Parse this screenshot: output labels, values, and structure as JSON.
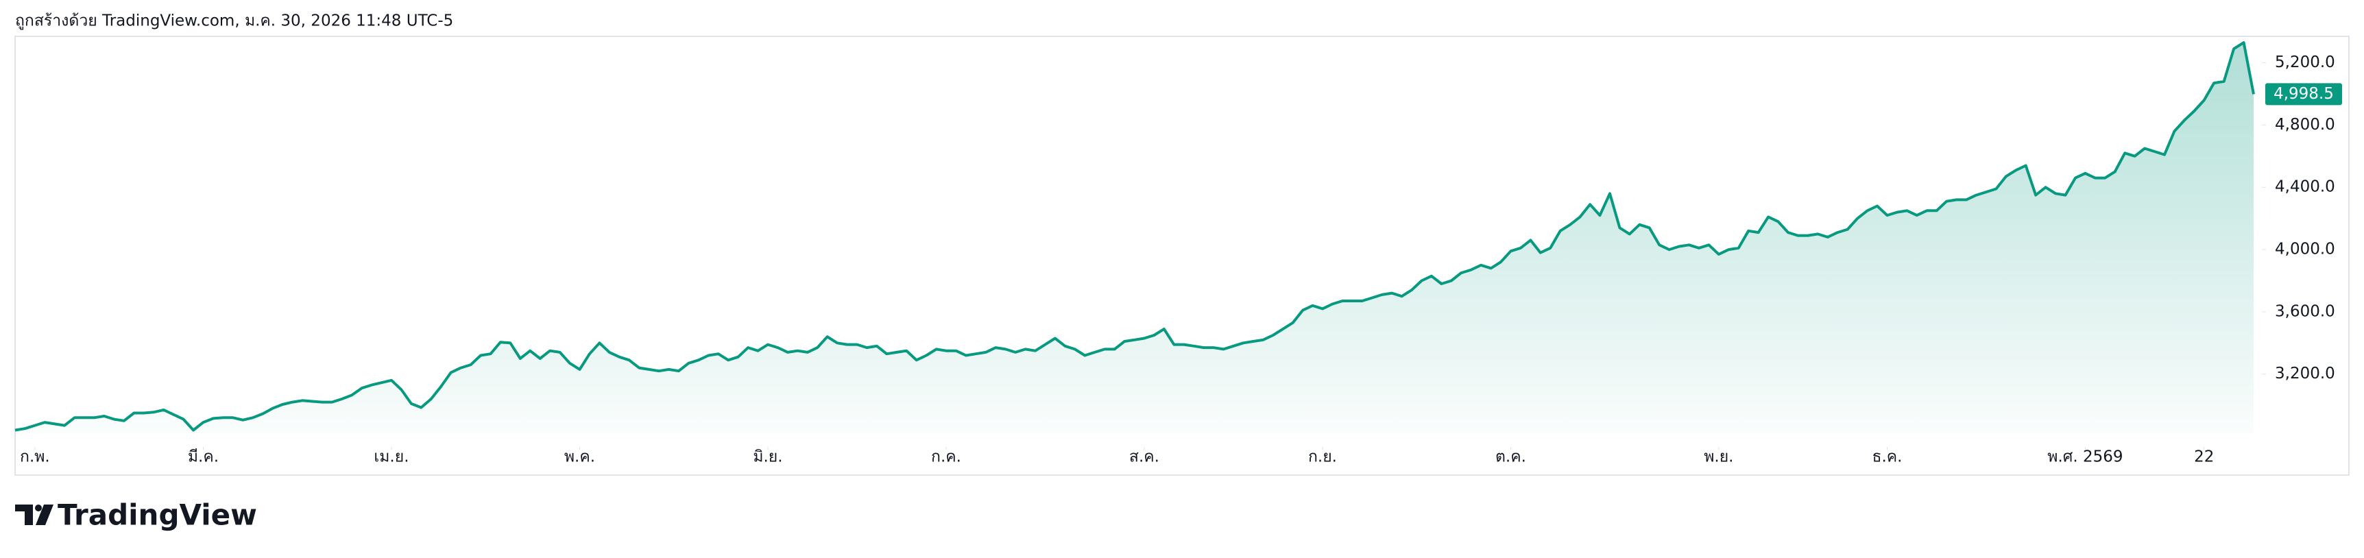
{
  "header": {
    "text": "ถูกสร้างด้วย TradingView.com, ม.ค. 30, 2026 11:48 UTC-5"
  },
  "footer": {
    "brand": "TradingView"
  },
  "chart_data": {
    "type": "area",
    "color": "#089981",
    "values": [
      2840,
      2850,
      2870,
      2890,
      2880,
      2870,
      2920,
      2920,
      2920,
      2930,
      2910,
      2900,
      2950,
      2950,
      2955,
      2970,
      2940,
      2910,
      2840,
      2890,
      2915,
      2920,
      2920,
      2905,
      2920,
      2945,
      2980,
      3005,
      3020,
      3030,
      3025,
      3020,
      3020,
      3040,
      3065,
      3110,
      3130,
      3145,
      3160,
      3100,
      3010,
      2985,
      3040,
      3120,
      3210,
      3240,
      3260,
      3320,
      3330,
      3405,
      3400,
      3300,
      3350,
      3300,
      3350,
      3340,
      3270,
      3230,
      3330,
      3400,
      3340,
      3310,
      3290,
      3240,
      3230,
      3220,
      3230,
      3220,
      3270,
      3290,
      3320,
      3330,
      3290,
      3310,
      3370,
      3350,
      3390,
      3370,
      3340,
      3350,
      3340,
      3370,
      3440,
      3400,
      3390,
      3390,
      3370,
      3380,
      3330,
      3340,
      3350,
      3290,
      3320,
      3360,
      3350,
      3350,
      3320,
      3330,
      3340,
      3370,
      3360,
      3340,
      3360,
      3350,
      3390,
      3430,
      3380,
      3360,
      3320,
      3340,
      3360,
      3360,
      3410,
      3420,
      3430,
      3450,
      3490,
      3390,
      3390,
      3380,
      3370,
      3370,
      3360,
      3380,
      3400,
      3410,
      3420,
      3450,
      3490,
      3530,
      3610,
      3640,
      3620,
      3650,
      3670,
      3670,
      3670,
      3690,
      3710,
      3720,
      3700,
      3740,
      3800,
      3830,
      3780,
      3800,
      3850,
      3870,
      3900,
      3880,
      3920,
      3990,
      4010,
      4060,
      3980,
      4010,
      4120,
      4160,
      4210,
      4290,
      4220,
      4360,
      4140,
      4100,
      4160,
      4140,
      4030,
      4000,
      4020,
      4030,
      4010,
      4030,
      3970,
      4000,
      4010,
      4120,
      4110,
      4210,
      4180,
      4110,
      4090,
      4090,
      4100,
      4080,
      4110,
      4130,
      4200,
      4250,
      4280,
      4220,
      4240,
      4250,
      4220,
      4250,
      4250,
      4310,
      4320,
      4320,
      4350,
      4370,
      4390,
      4470,
      4510,
      4540,
      4350,
      4400,
      4360,
      4350,
      4460,
      4490,
      4460,
      4460,
      4500,
      4620,
      4600,
      4650,
      4630,
      4610,
      4760,
      4830,
      4890,
      4960,
      5070,
      5080,
      5290,
      5330,
      4998.5
    ],
    "last_value_label": "4,998.5",
    "xlim": [
      0,
      226
    ],
    "xticks": [
      {
        "value": 2,
        "label": "ก.พ."
      },
      {
        "value": 19,
        "label": "มี.ค."
      },
      {
        "value": 38,
        "label": "เม.ย."
      },
      {
        "value": 57,
        "label": "พ.ค."
      },
      {
        "value": 76,
        "label": "มิ.ย."
      },
      {
        "value": 94,
        "label": "ก.ค."
      },
      {
        "value": 114,
        "label": "ส.ค."
      },
      {
        "value": 132,
        "label": "ก.ย."
      },
      {
        "value": 151,
        "label": "ต.ค."
      },
      {
        "value": 172,
        "label": "พ.ย."
      },
      {
        "value": 189,
        "label": "ธ.ค."
      },
      {
        "value": 209,
        "label": "พ.ศ. 2569"
      },
      {
        "value": 221,
        "label": "22"
      }
    ],
    "ylim": [
      2820,
      5370
    ],
    "yticks": [
      {
        "value": 3200,
        "label": "3,200.0"
      },
      {
        "value": 3600,
        "label": "3,600.0"
      },
      {
        "value": 4000,
        "label": "4,000.0"
      },
      {
        "value": 4400,
        "label": "4,400.0"
      },
      {
        "value": 4800,
        "label": "4,800.0"
      },
      {
        "value": 5200,
        "label": "5,200.0"
      }
    ],
    "grid": false
  }
}
